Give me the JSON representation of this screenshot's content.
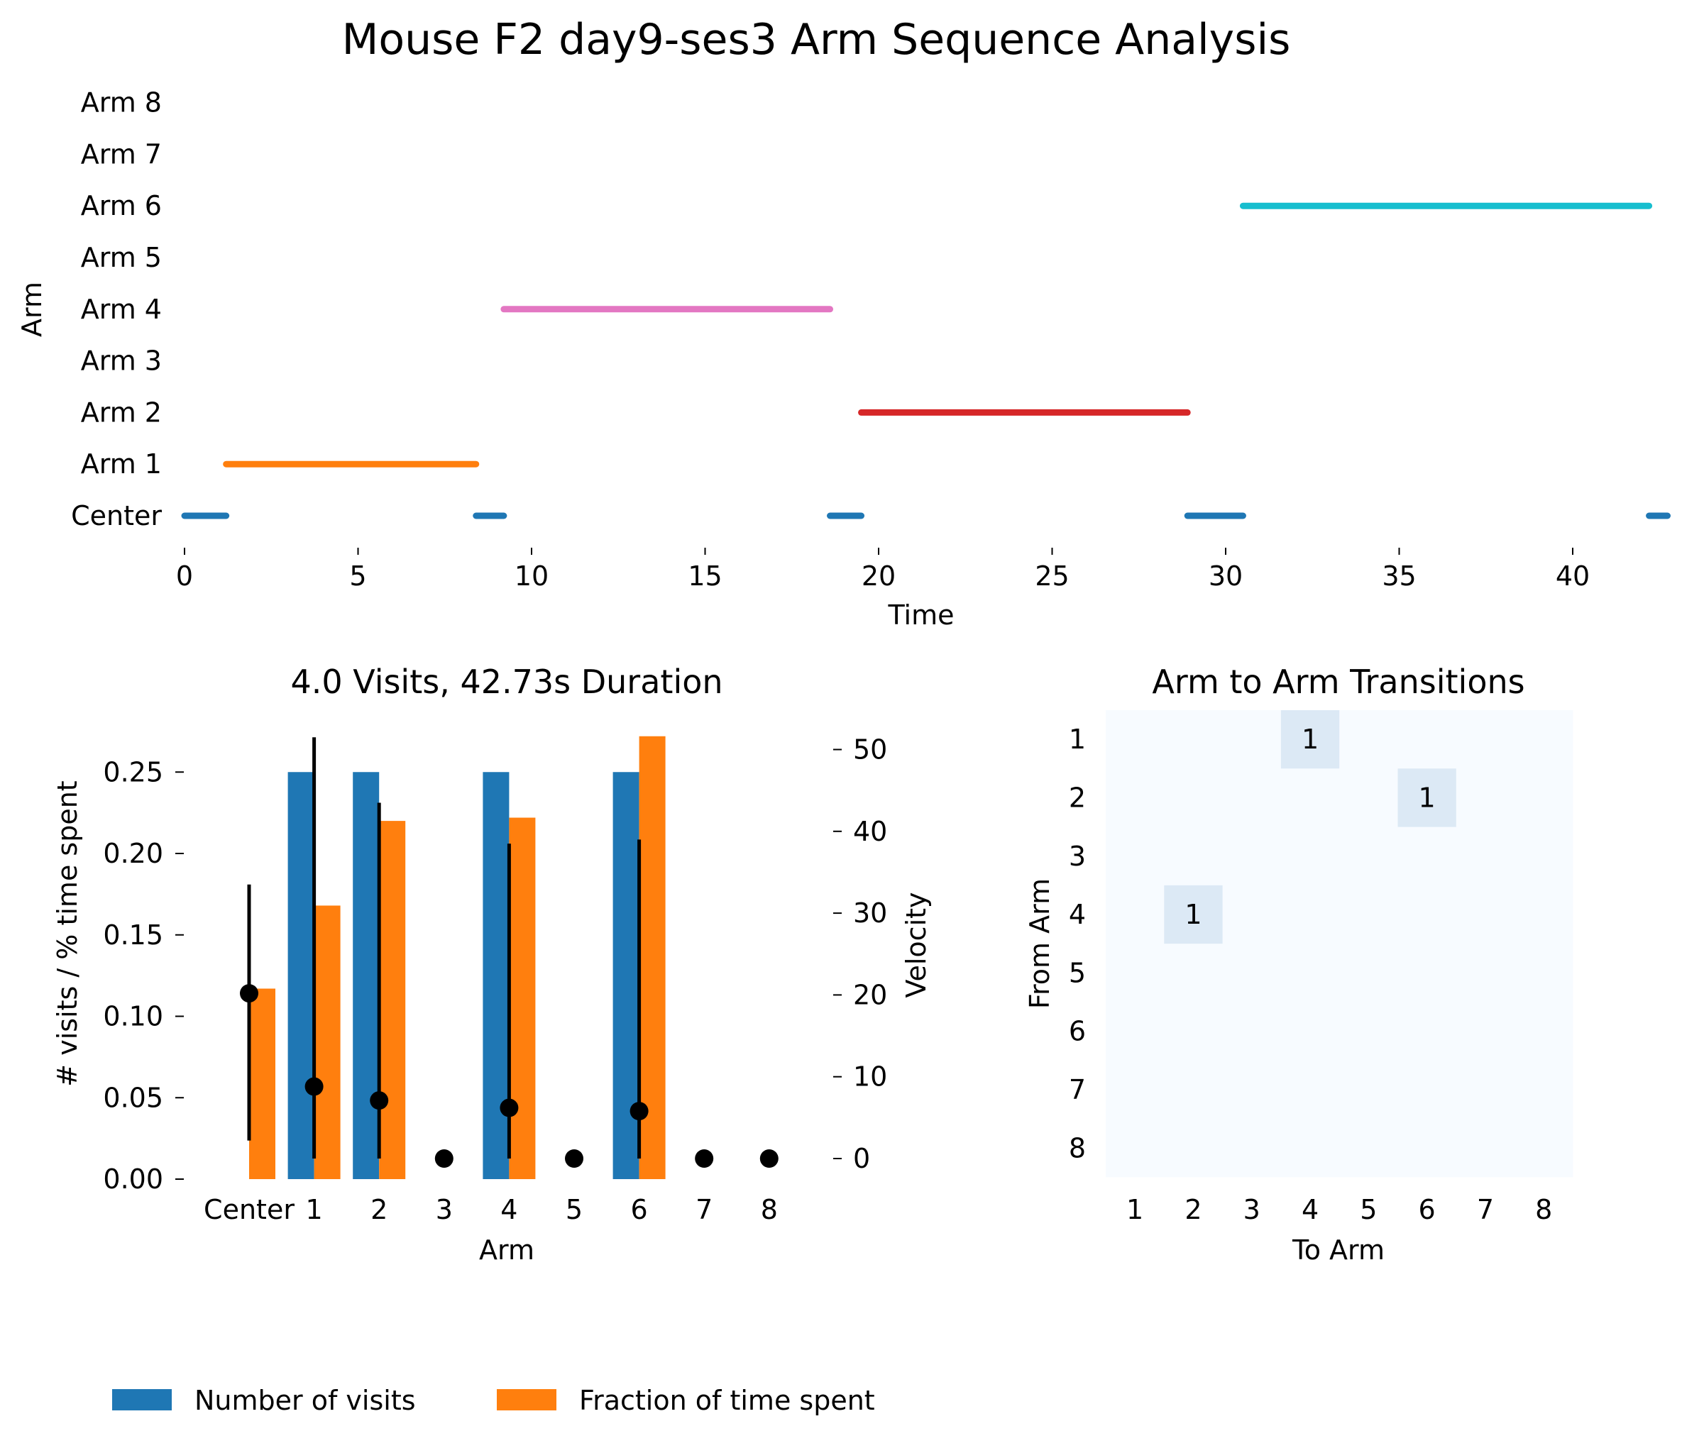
{
  "figure_title": "Mouse F2 day9-ses3 Arm Sequence Analysis",
  "legend": [
    {
      "label": "Number of visits",
      "color": "#1f77b4"
    },
    {
      "label": "Fraction of time spent",
      "color": "#ff7f0e"
    }
  ],
  "chart_data": [
    {
      "type": "timeline",
      "xlabel": "Time",
      "ylabel": "Arm",
      "xlim": [
        0,
        42.73
      ],
      "xticks": [
        "0",
        "5",
        "10",
        "15",
        "20",
        "25",
        "30",
        "35",
        "40"
      ],
      "rows": [
        "Center",
        "Arm 1",
        "Arm 2",
        "Arm 3",
        "Arm 4",
        "Arm 5",
        "Arm 6",
        "Arm 7",
        "Arm 8"
      ],
      "segments": [
        {
          "row": "Center",
          "start": 0.0,
          "end": 1.2,
          "color": "#1f77b4"
        },
        {
          "row": "Arm 1",
          "start": 1.2,
          "end": 8.4,
          "color": "#ff7f0e"
        },
        {
          "row": "Center",
          "start": 8.4,
          "end": 9.2,
          "color": "#1f77b4"
        },
        {
          "row": "Arm 4",
          "start": 9.2,
          "end": 18.6,
          "color": "#e377c2"
        },
        {
          "row": "Center",
          "start": 18.6,
          "end": 19.5,
          "color": "#1f77b4"
        },
        {
          "row": "Arm 2",
          "start": 19.5,
          "end": 28.9,
          "color": "#d62728"
        },
        {
          "row": "Center",
          "start": 28.9,
          "end": 30.5,
          "color": "#1f77b4"
        },
        {
          "row": "Arm 6",
          "start": 30.5,
          "end": 42.2,
          "color": "#17becf"
        },
        {
          "row": "Center",
          "start": 42.2,
          "end": 42.73,
          "color": "#1f77b4"
        }
      ]
    },
    {
      "type": "bar",
      "title": "4.0 Visits, 42.73s Duration",
      "xlabel": "Arm",
      "ylabel": "# visits / % time spent",
      "y2label": "Velocity",
      "categories": [
        "Center",
        "1",
        "2",
        "3",
        "4",
        "5",
        "6",
        "7",
        "8"
      ],
      "ylim": [
        0,
        0.27
      ],
      "yticks": [
        "0.00",
        "0.05",
        "0.10",
        "0.15",
        "0.20",
        "0.25"
      ],
      "y2lim": [
        -3.3,
        53.7
      ],
      "y2ticks": [
        "0",
        "10",
        "20",
        "30",
        "40",
        "50"
      ],
      "series": [
        {
          "name": "Number of visits",
          "color": "#1f77b4",
          "values": [
            0,
            0.25,
            0.25,
            0,
            0.25,
            0,
            0.25,
            0,
            0
          ]
        },
        {
          "name": "Fraction of time spent",
          "color": "#ff7f0e",
          "values": [
            0.117,
            0.168,
            0.22,
            0,
            0.222,
            0,
            0.272,
            0,
            0
          ]
        }
      ],
      "velocity": {
        "mean": [
          20.2,
          8.8,
          7.1,
          0,
          6.2,
          0,
          5.8,
          0,
          0
        ],
        "low": [
          2.2,
          0.0,
          0.0,
          null,
          0.0,
          null,
          0.0,
          null,
          null
        ],
        "high": [
          33.5,
          51.5,
          43.5,
          null,
          38.5,
          null,
          39.0,
          null,
          null
        ]
      }
    },
    {
      "type": "heatmap",
      "title": "Arm to Arm Transitions",
      "xlabel": "To Arm",
      "ylabel": "From Arm",
      "x": [
        "1",
        "2",
        "3",
        "4",
        "5",
        "6",
        "7",
        "8"
      ],
      "y": [
        "1",
        "2",
        "3",
        "4",
        "5",
        "6",
        "7",
        "8"
      ],
      "cells": [
        {
          "from": "1",
          "to": "4",
          "value": 1,
          "label": "1"
        },
        {
          "from": "2",
          "to": "6",
          "value": 1,
          "label": "1"
        },
        {
          "from": "4",
          "to": "2",
          "value": 1,
          "label": "1"
        }
      ],
      "colors": {
        "empty": "#f7fbff",
        "one": "#dce9f5"
      }
    }
  ]
}
